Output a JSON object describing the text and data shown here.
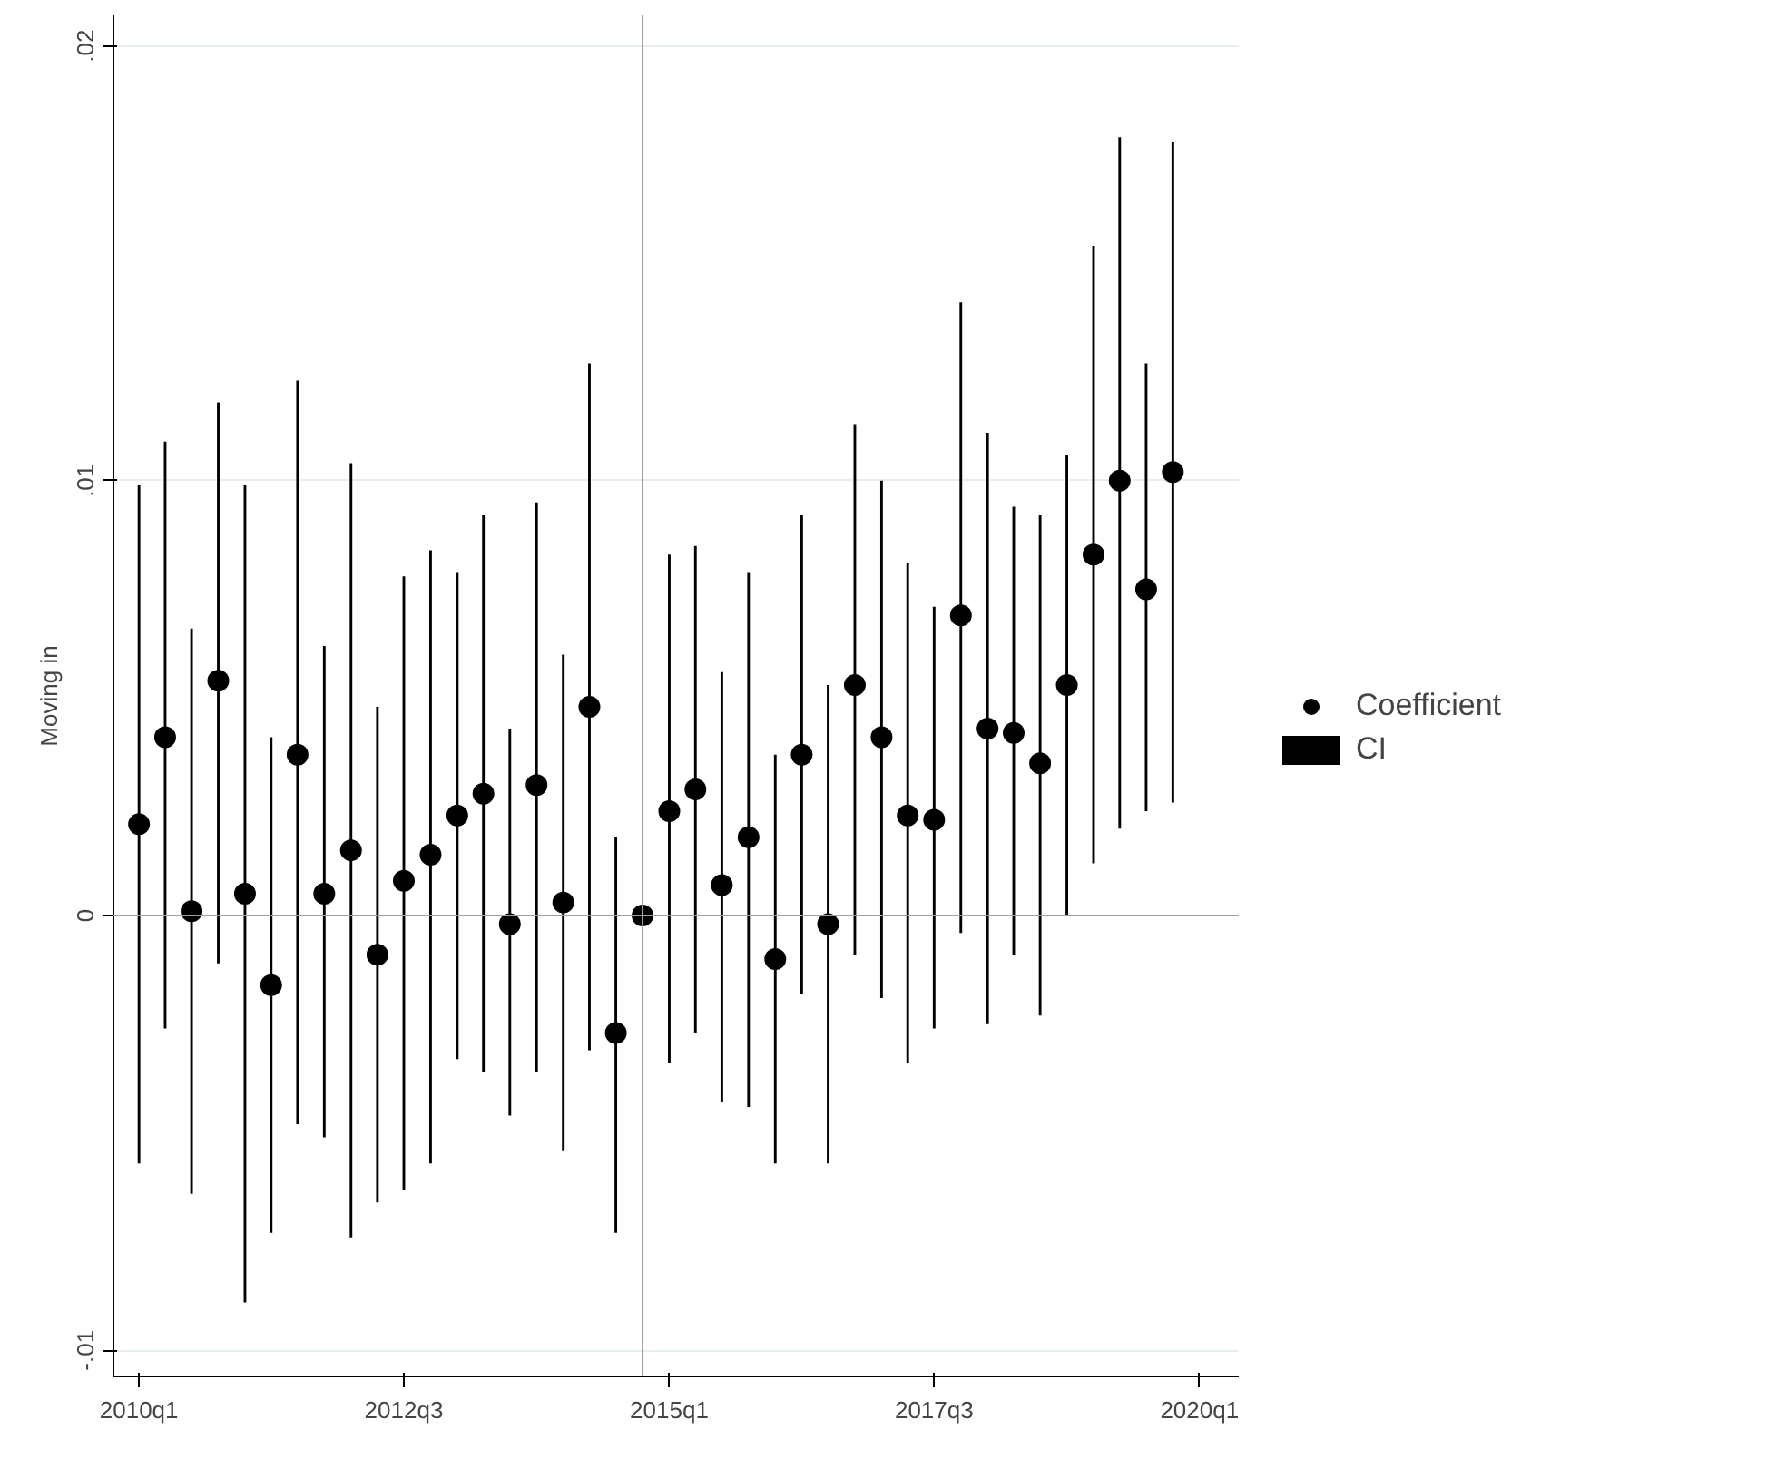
{
  "chart_data": {
    "type": "scatter",
    "ylabel": "Moving in",
    "x": [
      "2010-01",
      "2010-04",
      "2010-07",
      "2010-10",
      "2011-01",
      "2011-04",
      "2011-07",
      "2011-10",
      "2012-01",
      "2012-04",
      "2012-07",
      "2012-10",
      "2013-01",
      "2013-04",
      "2013-07",
      "2013-10",
      "2014-01",
      "2014-04",
      "2014-07",
      "2014-10",
      "2015-01",
      "2015-04",
      "2015-07",
      "2015-10",
      "2016-01",
      "2016-04",
      "2016-07",
      "2016-10",
      "2017-01",
      "2017-04",
      "2017-07",
      "2017-10",
      "2018-01",
      "2018-04",
      "2018-07",
      "2018-10",
      "2019-01",
      "2019-04",
      "2019-07",
      "2019-10"
    ],
    "series": [
      {
        "name": "Coefficient",
        "marker": "circle",
        "color": "#000000",
        "values": [
          0.0021,
          0.0041,
          0.0001,
          0.0054,
          0.0005,
          -0.0016,
          0.0037,
          0.0005,
          0.0015,
          -0.0009,
          0.0008,
          0.0014,
          0.0023,
          0.0028,
          -0.0002,
          0.003,
          0.0003,
          0.0048,
          -0.0027,
          0,
          0.0024,
          0.0029,
          0.0007,
          0.0018,
          -0.001,
          0.0037,
          -0.0002,
          0.0053,
          0.0041,
          0.0023,
          0.0022,
          0.0069,
          0.0043,
          0.0042,
          0.0035,
          0.0053,
          0.0083,
          0.01,
          0.0075,
          0.0102
        ]
      },
      {
        "name": "CI",
        "type": "bar",
        "color": "#000000",
        "base": [
          -0.0057,
          -0.0026,
          -0.0064,
          -0.0011,
          -0.0089,
          -0.0073,
          -0.0048,
          -0.0051,
          -0.0074,
          -0.0066,
          -0.0063,
          -0.0057,
          -0.0033,
          -0.0036,
          -0.0046,
          -0.0036,
          -0.0054,
          -0.0031,
          -0.0073,
          null,
          -0.0034,
          -0.0027,
          -0.0043,
          -0.0044,
          -0.0057,
          -0.0018,
          -0.0057,
          -0.0009,
          -0.0019,
          -0.0034,
          -0.0026,
          -0.0004,
          -0.0025,
          -0.0009,
          -0.0023,
          0.0,
          0.0012,
          0.002,
          0.0024,
          0.0026
        ],
        "values": [
          0.0156,
          0.0135,
          0.013,
          0.0129,
          0.0188,
          0.0114,
          0.0171,
          0.0113,
          0.0178,
          0.0114,
          0.0141,
          0.0141,
          0.0112,
          0.0128,
          0.0089,
          0.0131,
          0.0114,
          0.0158,
          0.0091,
          null,
          0.0117,
          0.0112,
          0.0099,
          0.0123,
          0.0094,
          0.011,
          0.011,
          0.0122,
          0.0119,
          0.0115,
          0.0097,
          0.0145,
          0.0136,
          0.0103,
          0.0115,
          0.0106,
          0.0142,
          0.0159,
          0.0103,
          0.0152
        ]
      }
    ],
    "xlim": [
      "2009-10-05",
      "2020-05-15"
    ],
    "xticks": [
      {
        "value": "2010-01",
        "label": "2010q1"
      },
      {
        "value": "2012-07",
        "label": "2012q3"
      },
      {
        "value": "2015-01",
        "label": "2015q1"
      },
      {
        "value": "2017-07",
        "label": "2017q3"
      },
      {
        "value": "2020-01",
        "label": "2020q1"
      }
    ],
    "ylim": [
      -0.0106,
      0.0207
    ],
    "yticks": [
      {
        "value": -0.01,
        "label": "-.01"
      },
      0,
      {
        "value": 0.01,
        "label": ".01"
      },
      {
        "value": 0.02,
        "label": ".02"
      }
    ],
    "ref_lines": [
      {
        "axis": "x",
        "value": "2014-10",
        "color": "#a0a0a0"
      },
      {
        "axis": "y",
        "value": 0,
        "color": "#a0a0a0"
      }
    ],
    "grid": "y",
    "legend": "right"
  }
}
